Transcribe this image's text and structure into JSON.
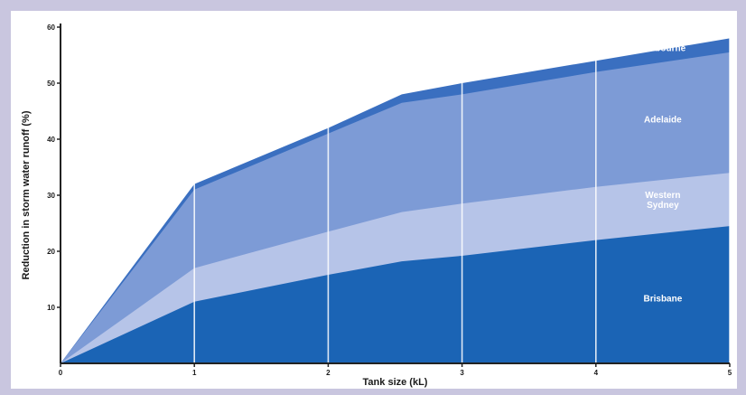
{
  "chart_data": {
    "type": "area",
    "stacked": false,
    "xlabel": "Tank size (kL)",
    "ylabel": "Reduction in storm water runoff (%)",
    "xlim": [
      0,
      5
    ],
    "ylim": [
      0,
      60
    ],
    "x_ticks": [
      "0",
      "1",
      "2",
      "3",
      "4",
      "5"
    ],
    "y_ticks": [
      "0",
      "10",
      "20",
      "30",
      "40",
      "50",
      "60"
    ],
    "grid": "vertical",
    "series": [
      {
        "name": "Melbourne",
        "color": "#3a6fc0",
        "x": [
          0,
          1,
          2,
          2.55,
          3,
          4,
          5
        ],
        "values": [
          0,
          32,
          42,
          48,
          50,
          54,
          58
        ]
      },
      {
        "name": "Adelaide",
        "color": "#7d9bd6",
        "x": [
          0,
          1,
          2,
          2.55,
          3,
          4,
          5
        ],
        "values": [
          0,
          31,
          41,
          46.5,
          48,
          52,
          55.5
        ]
      },
      {
        "name": "Western Sydney",
        "color": "#b6c4e8",
        "x": [
          0,
          1,
          2,
          2.55,
          3,
          4,
          5
        ],
        "values": [
          0,
          17,
          23.5,
          27,
          28.5,
          31.5,
          34
        ]
      },
      {
        "name": "Brisbane",
        "color": "#1b64b5",
        "x": [
          0,
          1,
          2,
          2.55,
          3,
          4,
          5
        ],
        "values": [
          0,
          11,
          15.8,
          18.2,
          19.2,
          22,
          24.5
        ]
      }
    ],
    "labels": [
      {
        "series": "Melbourne",
        "text": "Melbourne",
        "x": 4.5,
        "y": 56.2
      },
      {
        "series": "Adelaide",
        "text": "Adelaide",
        "x": 4.5,
        "y": 43.5
      },
      {
        "series": "Western Sydney",
        "text": "Western\nSydney",
        "x": 4.5,
        "y": 29.1
      },
      {
        "series": "Brisbane",
        "text": "Brisbane",
        "x": 4.5,
        "y": 11.5
      }
    ]
  }
}
